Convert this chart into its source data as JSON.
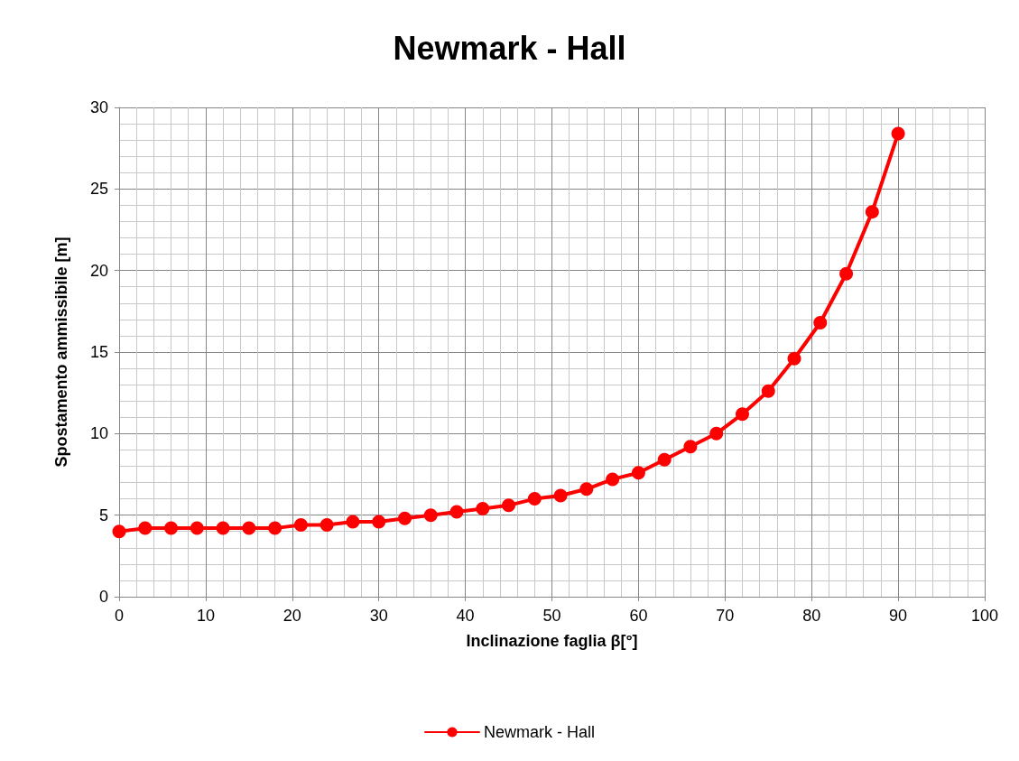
{
  "chart_data": {
    "type": "line",
    "title": "Newmark - Hall",
    "xlabel": "Inclinazione faglia β[°]",
    "ylabel": "Spostamento ammissibile [m]",
    "x": [
      0,
      3,
      6,
      9,
      12,
      15,
      18,
      21,
      24,
      27,
      30,
      33,
      36,
      39,
      42,
      45,
      48,
      51,
      54,
      57,
      60,
      63,
      66,
      69,
      72,
      75,
      78,
      81,
      84,
      87,
      90
    ],
    "series": [
      {
        "name": "Newmark - Hall",
        "color": "#ff0000",
        "values": [
          4.0,
          4.2,
          4.2,
          4.2,
          4.2,
          4.2,
          4.2,
          4.4,
          4.4,
          4.6,
          4.6,
          4.8,
          5.0,
          5.2,
          5.4,
          5.6,
          6.0,
          6.2,
          6.6,
          7.2,
          7.6,
          8.4,
          9.2,
          10.0,
          11.2,
          12.6,
          14.6,
          16.8,
          19.8,
          23.6,
          28.4
        ]
      }
    ],
    "xlim": [
      0,
      100
    ],
    "xticks": [
      0,
      10,
      20,
      30,
      40,
      50,
      60,
      70,
      80,
      90,
      100
    ],
    "ylim": [
      0,
      30
    ],
    "yticks": [
      0,
      5,
      10,
      15,
      20,
      25,
      30
    ],
    "grid": true,
    "legend": "bottom",
    "marker": "circle",
    "line_style": "solid"
  }
}
